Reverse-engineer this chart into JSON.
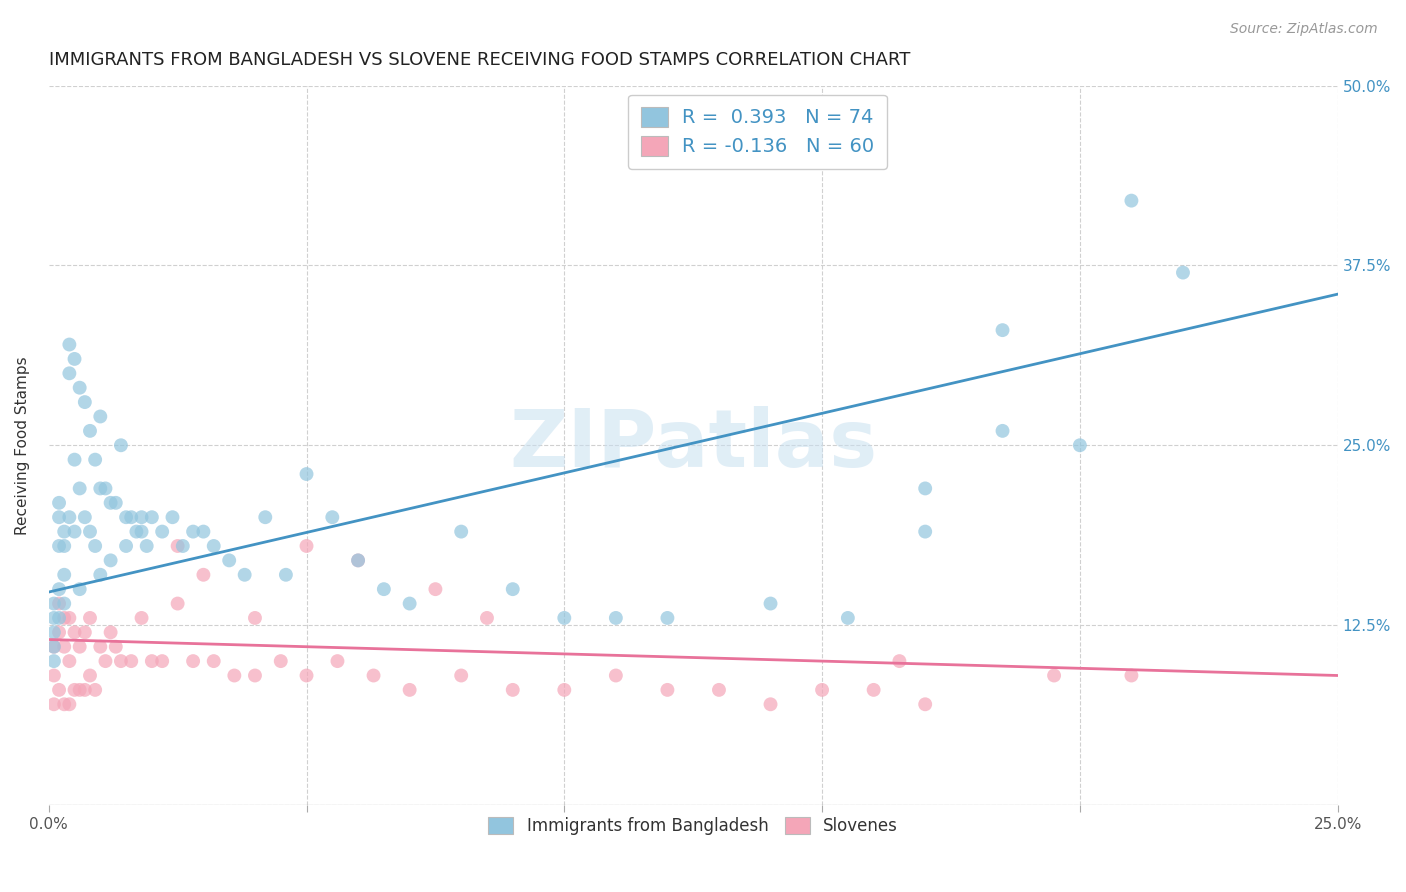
{
  "title": "IMMIGRANTS FROM BANGLADESH VS SLOVENE RECEIVING FOOD STAMPS CORRELATION CHART",
  "source": "Source: ZipAtlas.com",
  "ylabel": "Receiving Food Stamps",
  "xlim": [
    0.0,
    0.25
  ],
  "ylim": [
    -0.02,
    0.52
  ],
  "plot_ylim": [
    0.0,
    0.5
  ],
  "xticks": [
    0.0,
    0.05,
    0.1,
    0.15,
    0.2,
    0.25
  ],
  "xticklabels": [
    "0.0%",
    "",
    "",
    "",
    "",
    "25.0%"
  ],
  "yticks": [
    0.0,
    0.125,
    0.25,
    0.375,
    0.5
  ],
  "yticklabels": [
    "",
    "12.5%",
    "25.0%",
    "37.5%",
    "50.0%"
  ],
  "bangladesh_R": 0.393,
  "bangladesh_N": 74,
  "slovene_R": -0.136,
  "slovene_N": 60,
  "blue_color": "#92c5de",
  "pink_color": "#f4a6b8",
  "blue_line_color": "#4393c3",
  "pink_line_color": "#e8729a",
  "legend_text_color": "#4393c3",
  "watermark": "ZIPatlas",
  "background_color": "#ffffff",
  "grid_color": "#d0d0d0",
  "title_fontsize": 13,
  "axis_label_fontsize": 11,
  "tick_fontsize": 11,
  "bangladesh_x": [
    0.001,
    0.001,
    0.001,
    0.001,
    0.001,
    0.002,
    0.002,
    0.002,
    0.002,
    0.002,
    0.003,
    0.003,
    0.003,
    0.003,
    0.004,
    0.004,
    0.004,
    0.005,
    0.005,
    0.005,
    0.006,
    0.006,
    0.006,
    0.007,
    0.007,
    0.008,
    0.008,
    0.009,
    0.009,
    0.01,
    0.01,
    0.011,
    0.012,
    0.013,
    0.014,
    0.015,
    0.016,
    0.017,
    0.018,
    0.019,
    0.02,
    0.022,
    0.024,
    0.026,
    0.028,
    0.03,
    0.032,
    0.035,
    0.038,
    0.042,
    0.046,
    0.05,
    0.055,
    0.06,
    0.065,
    0.07,
    0.08,
    0.09,
    0.1,
    0.11,
    0.12,
    0.14,
    0.155,
    0.17,
    0.185,
    0.17,
    0.185,
    0.2,
    0.21,
    0.22,
    0.01,
    0.012,
    0.015,
    0.018
  ],
  "bangladesh_y": [
    0.14,
    0.13,
    0.12,
    0.11,
    0.1,
    0.21,
    0.2,
    0.18,
    0.15,
    0.13,
    0.19,
    0.18,
    0.16,
    0.14,
    0.32,
    0.3,
    0.2,
    0.31,
    0.24,
    0.19,
    0.29,
    0.22,
    0.15,
    0.28,
    0.2,
    0.26,
    0.19,
    0.24,
    0.18,
    0.27,
    0.22,
    0.22,
    0.21,
    0.21,
    0.25,
    0.2,
    0.2,
    0.19,
    0.2,
    0.18,
    0.2,
    0.19,
    0.2,
    0.18,
    0.19,
    0.19,
    0.18,
    0.17,
    0.16,
    0.2,
    0.16,
    0.23,
    0.2,
    0.17,
    0.15,
    0.14,
    0.19,
    0.15,
    0.13,
    0.13,
    0.13,
    0.14,
    0.13,
    0.22,
    0.33,
    0.19,
    0.26,
    0.25,
    0.42,
    0.37,
    0.16,
    0.17,
    0.18,
    0.19
  ],
  "slovene_x": [
    0.001,
    0.001,
    0.001,
    0.002,
    0.002,
    0.002,
    0.003,
    0.003,
    0.003,
    0.004,
    0.004,
    0.004,
    0.005,
    0.005,
    0.006,
    0.006,
    0.007,
    0.007,
    0.008,
    0.008,
    0.009,
    0.01,
    0.011,
    0.012,
    0.013,
    0.014,
    0.016,
    0.018,
    0.02,
    0.022,
    0.025,
    0.028,
    0.032,
    0.036,
    0.04,
    0.045,
    0.05,
    0.056,
    0.063,
    0.07,
    0.08,
    0.09,
    0.1,
    0.11,
    0.12,
    0.13,
    0.14,
    0.15,
    0.16,
    0.17,
    0.025,
    0.03,
    0.04,
    0.05,
    0.06,
    0.075,
    0.085,
    0.165,
    0.195,
    0.21
  ],
  "slovene_y": [
    0.11,
    0.09,
    0.07,
    0.14,
    0.12,
    0.08,
    0.13,
    0.11,
    0.07,
    0.13,
    0.1,
    0.07,
    0.12,
    0.08,
    0.11,
    0.08,
    0.12,
    0.08,
    0.13,
    0.09,
    0.08,
    0.11,
    0.1,
    0.12,
    0.11,
    0.1,
    0.1,
    0.13,
    0.1,
    0.1,
    0.14,
    0.1,
    0.1,
    0.09,
    0.09,
    0.1,
    0.09,
    0.1,
    0.09,
    0.08,
    0.09,
    0.08,
    0.08,
    0.09,
    0.08,
    0.08,
    0.07,
    0.08,
    0.08,
    0.07,
    0.18,
    0.16,
    0.13,
    0.18,
    0.17,
    0.15,
    0.13,
    0.1,
    0.09,
    0.09
  ]
}
